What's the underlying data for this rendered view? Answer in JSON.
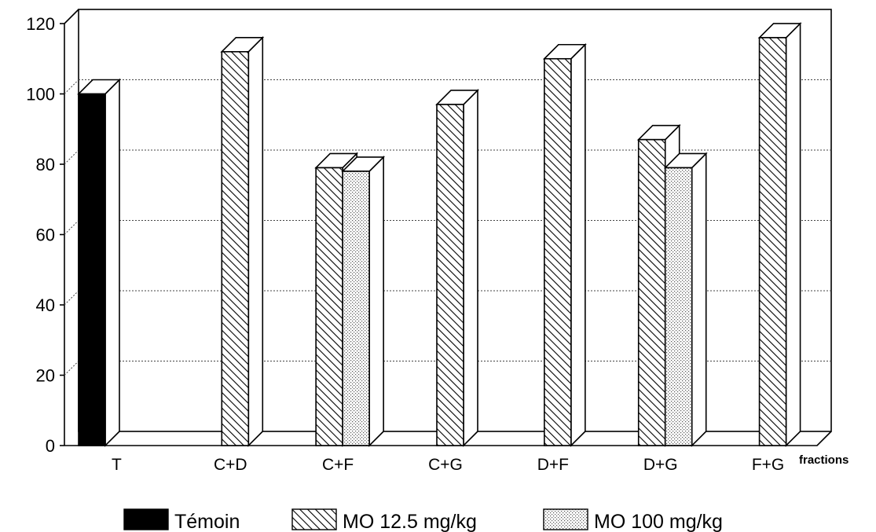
{
  "chart_data": {
    "type": "bar",
    "title": "",
    "xlabel": "fractions",
    "ylabel": "",
    "ylim": [
      0,
      120
    ],
    "yticks": [
      0,
      20,
      40,
      60,
      80,
      100,
      120
    ],
    "categories": [
      "T",
      "C+D",
      "C+F",
      "C+G",
      "D+F",
      "D+G",
      "F+G"
    ],
    "series": [
      {
        "name": "Témoin",
        "pattern": "solid",
        "values": [
          100,
          null,
          null,
          null,
          null,
          null,
          null
        ]
      },
      {
        "name": "MO 12.5 mg/kg",
        "pattern": "hatch",
        "values": [
          null,
          112,
          79,
          97,
          110,
          87,
          116
        ]
      },
      {
        "name": "MO 100 mg/kg",
        "pattern": "dots",
        "values": [
          null,
          null,
          78,
          null,
          null,
          79,
          null
        ]
      }
    ],
    "grid": true,
    "legend_position": "bottom",
    "style": "3d"
  }
}
